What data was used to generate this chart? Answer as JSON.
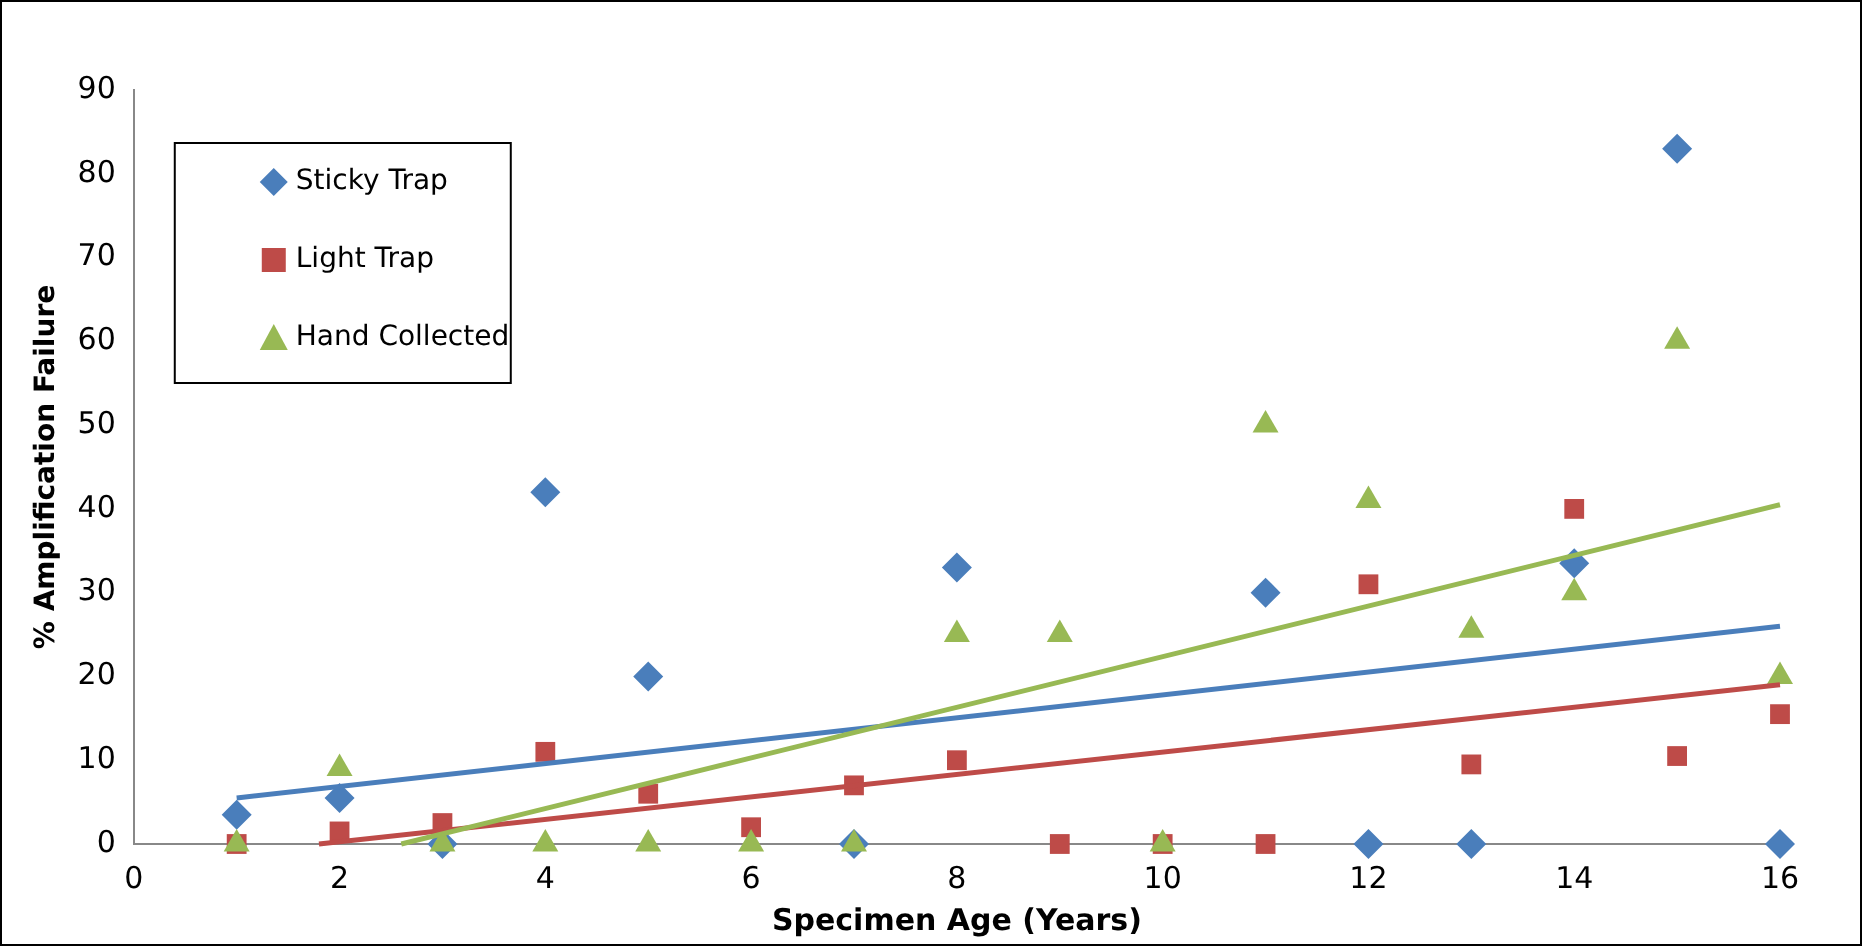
{
  "chart_data": {
    "type": "scatter",
    "xlabel": "Specimen Age (Years)",
    "ylabel": "% Amplification Failure",
    "x": [
      1,
      2,
      3,
      4,
      5,
      6,
      7,
      8,
      9,
      10,
      11,
      12,
      13,
      14,
      15,
      16
    ],
    "xlim": [
      0,
      16
    ],
    "xticks": [
      0,
      2,
      4,
      6,
      8,
      10,
      12,
      14,
      16
    ],
    "ylim": [
      0,
      90
    ],
    "yticks": [
      0,
      10,
      20,
      30,
      40,
      50,
      60,
      70,
      80,
      90
    ],
    "grid": false,
    "legend": "top left",
    "series": [
      {
        "name": "Sticky Trap",
        "color": "#4a7ebb",
        "marker": "diamond",
        "values": [
          3.5,
          5.5,
          0,
          42,
          20,
          null,
          0,
          33,
          null,
          null,
          30,
          0,
          0,
          33.5,
          83,
          0
        ]
      },
      {
        "name": "Light Trap",
        "color": "#be4b48",
        "marker": "square",
        "values": [
          0,
          1.5,
          2.5,
          11,
          6,
          2,
          7,
          10,
          0,
          0,
          0,
          31,
          9.5,
          40,
          10.5,
          15.5
        ]
      },
      {
        "name": "Hand Collected",
        "color": "#98b954",
        "marker": "triangle",
        "values": [
          0,
          9,
          0,
          0,
          0,
          0,
          0,
          25,
          25,
          0,
          50,
          41,
          25.5,
          30,
          60,
          20
        ]
      },
      {
        "type": "line",
        "color": "#4a7ebb",
        "x": [
          1,
          16
        ],
        "values": [
          5.5,
          26
        ]
      },
      {
        "type": "line",
        "color": "#be4b48",
        "x": [
          1.8,
          16
        ],
        "values": [
          0,
          19
        ]
      },
      {
        "type": "line",
        "color": "#98b954",
        "x": [
          2.6,
          16
        ],
        "values": [
          0,
          40.5
        ]
      }
    ]
  }
}
